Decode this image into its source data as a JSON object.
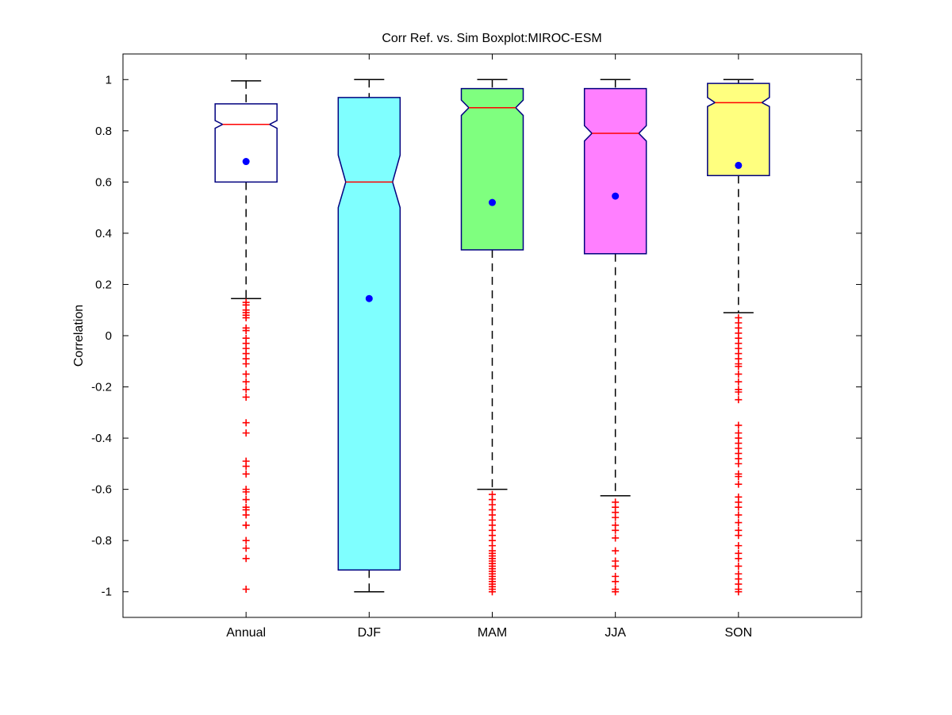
{
  "chart_data": {
    "type": "boxplot",
    "title": "Corr Ref. vs. Sim Boxplot:MIROC-ESM",
    "xlabel": "",
    "ylabel": "Correlation",
    "ylim": [
      -1.1,
      1.1
    ],
    "yticks": [
      1,
      0.8,
      0.6,
      0.4,
      0.2,
      0,
      -0.2,
      -0.4,
      -0.6,
      -0.8,
      -1
    ],
    "ytick_labels": [
      "1",
      "0.8",
      "0.6",
      "0.4",
      "0.2",
      "0",
      "-0.2",
      "-0.4",
      "-0.6",
      "-0.8",
      "-1"
    ],
    "categories": [
      "Annual",
      "DJF",
      "MAM",
      "JJA",
      "SON"
    ],
    "notched": true,
    "grid": false,
    "boxes": [
      {
        "category": "Annual",
        "color": "#ffffff",
        "whisker_low": 0.145,
        "q1": 0.6,
        "median": 0.825,
        "q3": 0.905,
        "whisker_high": 0.995,
        "notch_low": 0.81,
        "notch_high": 0.84,
        "mean": 0.68,
        "outliers": [
          0.13,
          0.12,
          0.1,
          0.09,
          0.08,
          0.07,
          0.03,
          0.02,
          -0.01,
          -0.03,
          -0.05,
          -0.07,
          -0.09,
          -0.11,
          -0.15,
          -0.18,
          -0.21,
          -0.24,
          -0.34,
          -0.38,
          -0.49,
          -0.51,
          -0.54,
          -0.6,
          -0.61,
          -0.64,
          -0.67,
          -0.68,
          -0.7,
          -0.74,
          -0.74,
          -0.8,
          -0.83,
          -0.87,
          -0.99
        ]
      },
      {
        "category": "DJF",
        "color": "#7fffff",
        "whisker_low": -1.0,
        "q1": -0.915,
        "median": 0.6,
        "q3": 0.93,
        "whisker_high": 1.0,
        "notch_low": 0.5,
        "notch_high": 0.705,
        "mean": 0.145,
        "outliers": []
      },
      {
        "category": "MAM",
        "color": "#7fff7f",
        "whisker_low": -0.6,
        "q1": 0.335,
        "median": 0.89,
        "q3": 0.965,
        "whisker_high": 1.0,
        "notch_low": 0.86,
        "notch_high": 0.92,
        "mean": 0.52,
        "outliers": [
          -0.62,
          -0.64,
          -0.66,
          -0.68,
          -0.7,
          -0.72,
          -0.74,
          -0.76,
          -0.78,
          -0.8,
          -0.82,
          -0.84,
          -0.85,
          -0.86,
          -0.87,
          -0.88,
          -0.89,
          -0.9,
          -0.91,
          -0.92,
          -0.93,
          -0.94,
          -0.95,
          -0.96,
          -0.97,
          -0.98,
          -0.99,
          -1.0
        ]
      },
      {
        "category": "JJA",
        "color": "#ff7fff",
        "whisker_low": -0.625,
        "q1": 0.32,
        "median": 0.79,
        "q3": 0.965,
        "whisker_high": 1.0,
        "notch_low": 0.76,
        "notch_high": 0.82,
        "mean": 0.545,
        "outliers": [
          -0.65,
          -0.67,
          -0.69,
          -0.71,
          -0.74,
          -0.76,
          -0.79,
          -0.84,
          -0.88,
          -0.9,
          -0.94,
          -0.96,
          -0.99,
          -1.0
        ]
      },
      {
        "category": "SON",
        "color": "#ffff7f",
        "whisker_low": 0.09,
        "q1": 0.625,
        "median": 0.91,
        "q3": 0.985,
        "whisker_high": 1.0,
        "notch_low": 0.895,
        "notch_high": 0.93,
        "mean": 0.665,
        "outliers": [
          0.07,
          0.05,
          0.03,
          0.01,
          -0.01,
          -0.03,
          -0.05,
          -0.07,
          -0.09,
          -0.11,
          -0.12,
          -0.15,
          -0.18,
          -0.21,
          -0.22,
          -0.25,
          -0.35,
          -0.38,
          -0.4,
          -0.42,
          -0.44,
          -0.46,
          -0.48,
          -0.5,
          -0.54,
          -0.55,
          -0.58,
          -0.63,
          -0.65,
          -0.67,
          -0.7,
          -0.73,
          -0.76,
          -0.78,
          -0.82,
          -0.85,
          -0.87,
          -0.9,
          -0.93,
          -0.95,
          -0.97,
          -0.99,
          -1.0
        ]
      }
    ],
    "colors": {
      "box_edge": "#00007f",
      "median": "#ff0000",
      "mean_marker": "#0000ff",
      "outlier": "#ff0000",
      "whisker": "#000000"
    }
  }
}
